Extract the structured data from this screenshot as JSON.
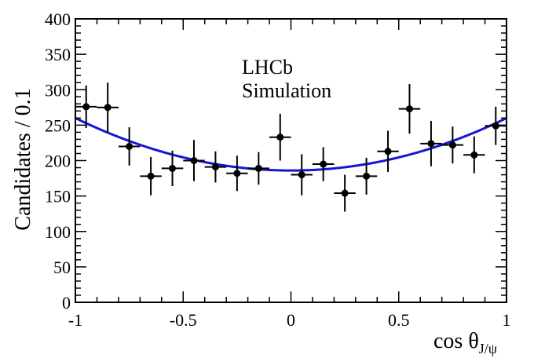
{
  "chart_data": {
    "type": "scatter",
    "title": "",
    "xlabel": "cos θ",
    "xlabel_sub": "J/ψ",
    "ylabel": "Candidates / 0.1",
    "xlim": [
      -1,
      1
    ],
    "ylim": [
      0,
      400
    ],
    "x_ticks": [
      -1,
      -0.5,
      0,
      0.5,
      1
    ],
    "x_tick_labels": [
      "-1",
      "-0.5",
      "0",
      "0.5",
      "1"
    ],
    "y_ticks": [
      0,
      50,
      100,
      150,
      200,
      250,
      300,
      350,
      400
    ],
    "y_tick_labels": [
      "0",
      "50",
      "100",
      "150",
      "200",
      "250",
      "300",
      "350",
      "400"
    ],
    "annotation": [
      "LHCb",
      "Simulation"
    ],
    "series": [
      {
        "name": "Simulation",
        "style": "points-with-errors",
        "x": [
          -0.95,
          -0.85,
          -0.75,
          -0.65,
          -0.55,
          -0.45,
          -0.35,
          -0.25,
          -0.15,
          -0.05,
          0.05,
          0.15,
          0.25,
          0.35,
          0.45,
          0.55,
          0.65,
          0.75,
          0.85,
          0.95
        ],
        "y": [
          276,
          275,
          220,
          178,
          189,
          200,
          191,
          182,
          189,
          233,
          180,
          195,
          154,
          178,
          213,
          273,
          224,
          222,
          208,
          249
        ],
        "x_err": [
          0.05,
          0.05,
          0.05,
          0.05,
          0.05,
          0.05,
          0.05,
          0.05,
          0.05,
          0.05,
          0.05,
          0.05,
          0.05,
          0.05,
          0.05,
          0.05,
          0.05,
          0.05,
          0.05,
          0.05
        ],
        "y_err": [
          30,
          35,
          27,
          27,
          25,
          29,
          22,
          25,
          23,
          33,
          29,
          24,
          26,
          26,
          29,
          35,
          32,
          26,
          26,
          27
        ]
      },
      {
        "name": "Fit",
        "style": "curve",
        "function": "a + b*x^2",
        "a": 186,
        "b": 74,
        "color": "#1515d6"
      }
    ]
  }
}
